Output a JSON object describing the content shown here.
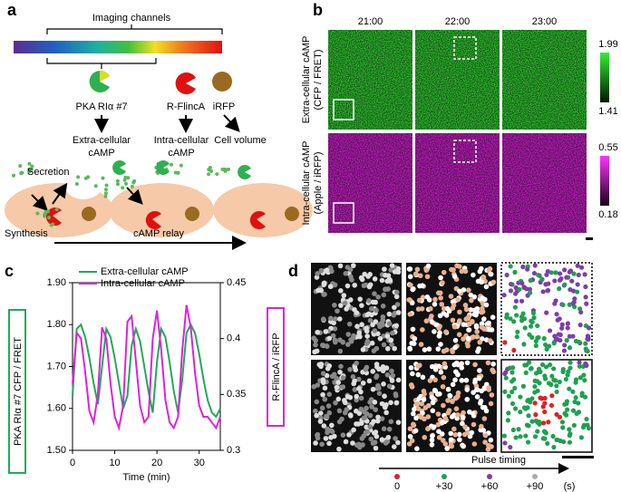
{
  "panel_labels": [
    "a",
    "b",
    "c",
    "d"
  ],
  "panel_a": {
    "title": "Imaging channels",
    "probes": [
      "PKA RIα #7",
      "R-FlincA",
      "iRFP"
    ],
    "readouts": [
      [
        "Extra-cellular",
        "cAMP"
      ],
      [
        "Intra-cellular",
        "cAMP"
      ],
      [
        "Cell volume"
      ]
    ],
    "secretion": "Secretion",
    "synthesis": "Synthesis",
    "relay": "cAMP relay"
  },
  "panel_b": {
    "times": [
      "21:00",
      "22:00",
      "23:00"
    ],
    "rows": [
      {
        "label": [
          "Extra-cellular cAMP",
          "(CFP / FRET)"
        ],
        "scale": [
          "1.99",
          "1.41"
        ],
        "color": "#33cc33"
      },
      {
        "label": [
          "Intra-cellular cAMP",
          "(Apple / iRFP)"
        ],
        "scale": [
          "0.55",
          "0.18"
        ],
        "color": "#cc22cc"
      }
    ]
  },
  "chart_data": {
    "type": "line",
    "xlabel": "Time (min)",
    "ylabel": "PKA RIα #7 CFP / FRET",
    "y2label": "R-FlincA / iRFP",
    "x": [
      0,
      1,
      2,
      3,
      4,
      5,
      6,
      7,
      8,
      9,
      10,
      11,
      12,
      13,
      14,
      15,
      16,
      17,
      18,
      19,
      20,
      21,
      22,
      23,
      24,
      25,
      26,
      27,
      28,
      29,
      30,
      31,
      32,
      33,
      34,
      35
    ],
    "series": [
      {
        "name": "Extra-cellular cAMP",
        "color": "#22aa55",
        "values": [
          1.63,
          1.79,
          1.8,
          1.77,
          1.72,
          1.66,
          1.61,
          1.7,
          1.79,
          1.77,
          1.72,
          1.66,
          1.6,
          1.63,
          1.75,
          1.79,
          1.76,
          1.7,
          1.64,
          1.59,
          1.71,
          1.79,
          1.77,
          1.71,
          1.64,
          1.59,
          1.67,
          1.78,
          1.8,
          1.78,
          1.73,
          1.67,
          1.62,
          1.59,
          1.58,
          1.6
        ]
      },
      {
        "name": "Intra-cellular cAMP",
        "color": "#dd22dd",
        "axis": "y2",
        "values": [
          0.36,
          0.405,
          0.4,
          0.37,
          0.335,
          0.325,
          0.35,
          0.41,
          0.4,
          0.36,
          0.33,
          0.32,
          0.34,
          0.415,
          0.42,
          0.38,
          0.34,
          0.325,
          0.33,
          0.4,
          0.425,
          0.39,
          0.345,
          0.325,
          0.32,
          0.33,
          0.39,
          0.43,
          0.41,
          0.37,
          0.34,
          0.33,
          0.33,
          0.325,
          0.32,
          0.33
        ]
      }
    ],
    "xlim": [
      0,
      35
    ],
    "xticks": [
      0,
      10,
      20,
      30
    ],
    "ylim": [
      1.5,
      1.9
    ],
    "yticks": [
      {
        "value": 1.5,
        "label": "1.50"
      },
      {
        "value": 1.6,
        "label": "1.60"
      },
      {
        "value": 1.7,
        "label": "1.70"
      },
      {
        "value": 1.8,
        "label": "1.80"
      },
      {
        "value": 1.9,
        "label": "1.90"
      }
    ],
    "y2lim": [
      0.3,
      0.45
    ],
    "y2ticks": [
      0.3,
      0.35,
      0.4,
      0.45
    ],
    "legend": "upper left"
  },
  "panel_d": {
    "axis_label": "Pulse timing",
    "unit": "(s)",
    "legend": [
      {
        "label": "0",
        "color": "#e02020"
      },
      {
        "label": "+30",
        "color": "#1fa050"
      },
      {
        "label": "+60",
        "color": "#7b3fa8"
      },
      {
        "label": "+90",
        "color": "#aaaaaa"
      }
    ]
  }
}
